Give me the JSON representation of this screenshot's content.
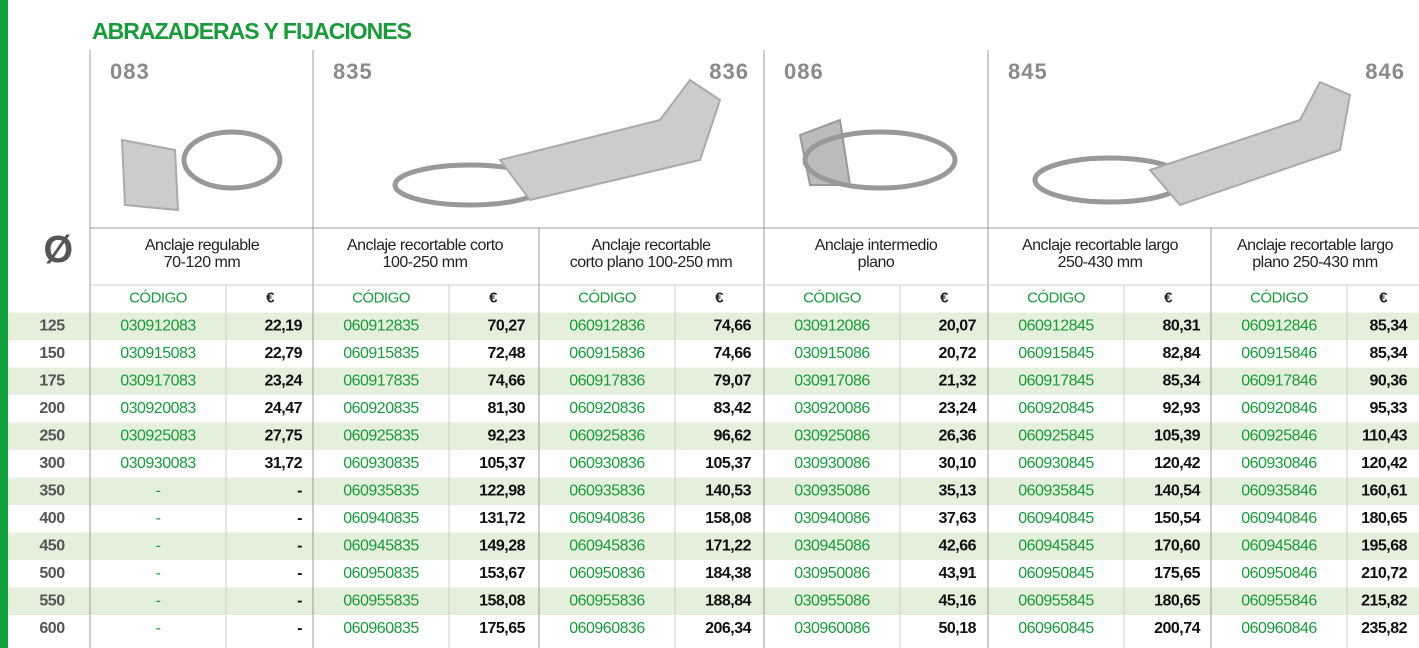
{
  "header": {
    "title": "ABRAZADERAS Y FIJACIONES",
    "diameter_symbol": "Ø"
  },
  "products": [
    {
      "number": "083",
      "description": [
        "Anclaje regulable",
        "70-120 mm"
      ]
    },
    {
      "number": "835",
      "description": [
        "Anclaje recortable corto",
        "100-250 mm"
      ]
    },
    {
      "number": "836",
      "description": [
        "Anclaje recortable",
        "corto plano 100-250 mm"
      ]
    },
    {
      "number": "086",
      "description": [
        "Anclaje intermedio",
        "plano"
      ]
    },
    {
      "number": "845",
      "description": [
        "Anclaje recortable largo",
        "250-430 mm"
      ]
    },
    {
      "number": "846",
      "description": [
        "Anclaje recortable largo",
        "plano 250-430 mm"
      ]
    }
  ],
  "table": {
    "code_header": "CÓDIGO",
    "price_header": "€",
    "diameters": [
      125,
      150,
      175,
      200,
      250,
      300,
      350,
      400,
      450,
      500,
      550,
      600
    ],
    "columns": [
      {
        "codes": [
          "030912083",
          "030915083",
          "030917083",
          "030920083",
          "030925083",
          "030930083",
          "-",
          "-",
          "-",
          "-",
          "-",
          "-"
        ],
        "prices": [
          "22,19",
          "22,79",
          "23,24",
          "24,47",
          "27,75",
          "31,72",
          "-",
          "-",
          "-",
          "-",
          "-",
          "-"
        ]
      },
      {
        "codes": [
          "060912835",
          "060915835",
          "060917835",
          "060920835",
          "060925835",
          "060930835",
          "060935835",
          "060940835",
          "060945835",
          "060950835",
          "060955835",
          "060960835"
        ],
        "prices": [
          "70,27",
          "72,48",
          "74,66",
          "81,30",
          "92,23",
          "105,37",
          "122,98",
          "131,72",
          "149,28",
          "153,67",
          "158,08",
          "175,65"
        ]
      },
      {
        "codes": [
          "060912836",
          "060915836",
          "060917836",
          "060920836",
          "060925836",
          "060930836",
          "060935836",
          "060940836",
          "060945836",
          "060950836",
          "060955836",
          "060960836"
        ],
        "prices": [
          "74,66",
          "74,66",
          "79,07",
          "83,42",
          "96,62",
          "105,37",
          "140,53",
          "158,08",
          "171,22",
          "184,38",
          "188,84",
          "206,34"
        ]
      },
      {
        "codes": [
          "030912086",
          "030915086",
          "030917086",
          "030920086",
          "030925086",
          "030930086",
          "030935086",
          "030940086",
          "030945086",
          "030950086",
          "030955086",
          "030960086"
        ],
        "prices": [
          "20,07",
          "20,72",
          "21,32",
          "23,24",
          "26,36",
          "30,10",
          "35,13",
          "37,63",
          "42,66",
          "43,91",
          "45,16",
          "50,18"
        ]
      },
      {
        "codes": [
          "060912845",
          "060915845",
          "060917845",
          "060920845",
          "060925845",
          "060930845",
          "060935845",
          "060940845",
          "060945845",
          "060950845",
          "060955845",
          "060960845"
        ],
        "prices": [
          "80,31",
          "82,84",
          "85,34",
          "92,93",
          "105,39",
          "120,42",
          "140,54",
          "150,54",
          "170,60",
          "175,65",
          "180,65",
          "200,74"
        ]
      },
      {
        "codes": [
          "060912846",
          "060915846",
          "060917846",
          "060920846",
          "060925846",
          "060930846",
          "060935846",
          "060940846",
          "060945846",
          "060950846",
          "060955846",
          "060960846"
        ],
        "prices": [
          "85,34",
          "85,34",
          "90,36",
          "95,33",
          "110,43",
          "120,42",
          "160,61",
          "180,65",
          "195,68",
          "210,72",
          "215,82",
          "235,82"
        ]
      }
    ]
  }
}
